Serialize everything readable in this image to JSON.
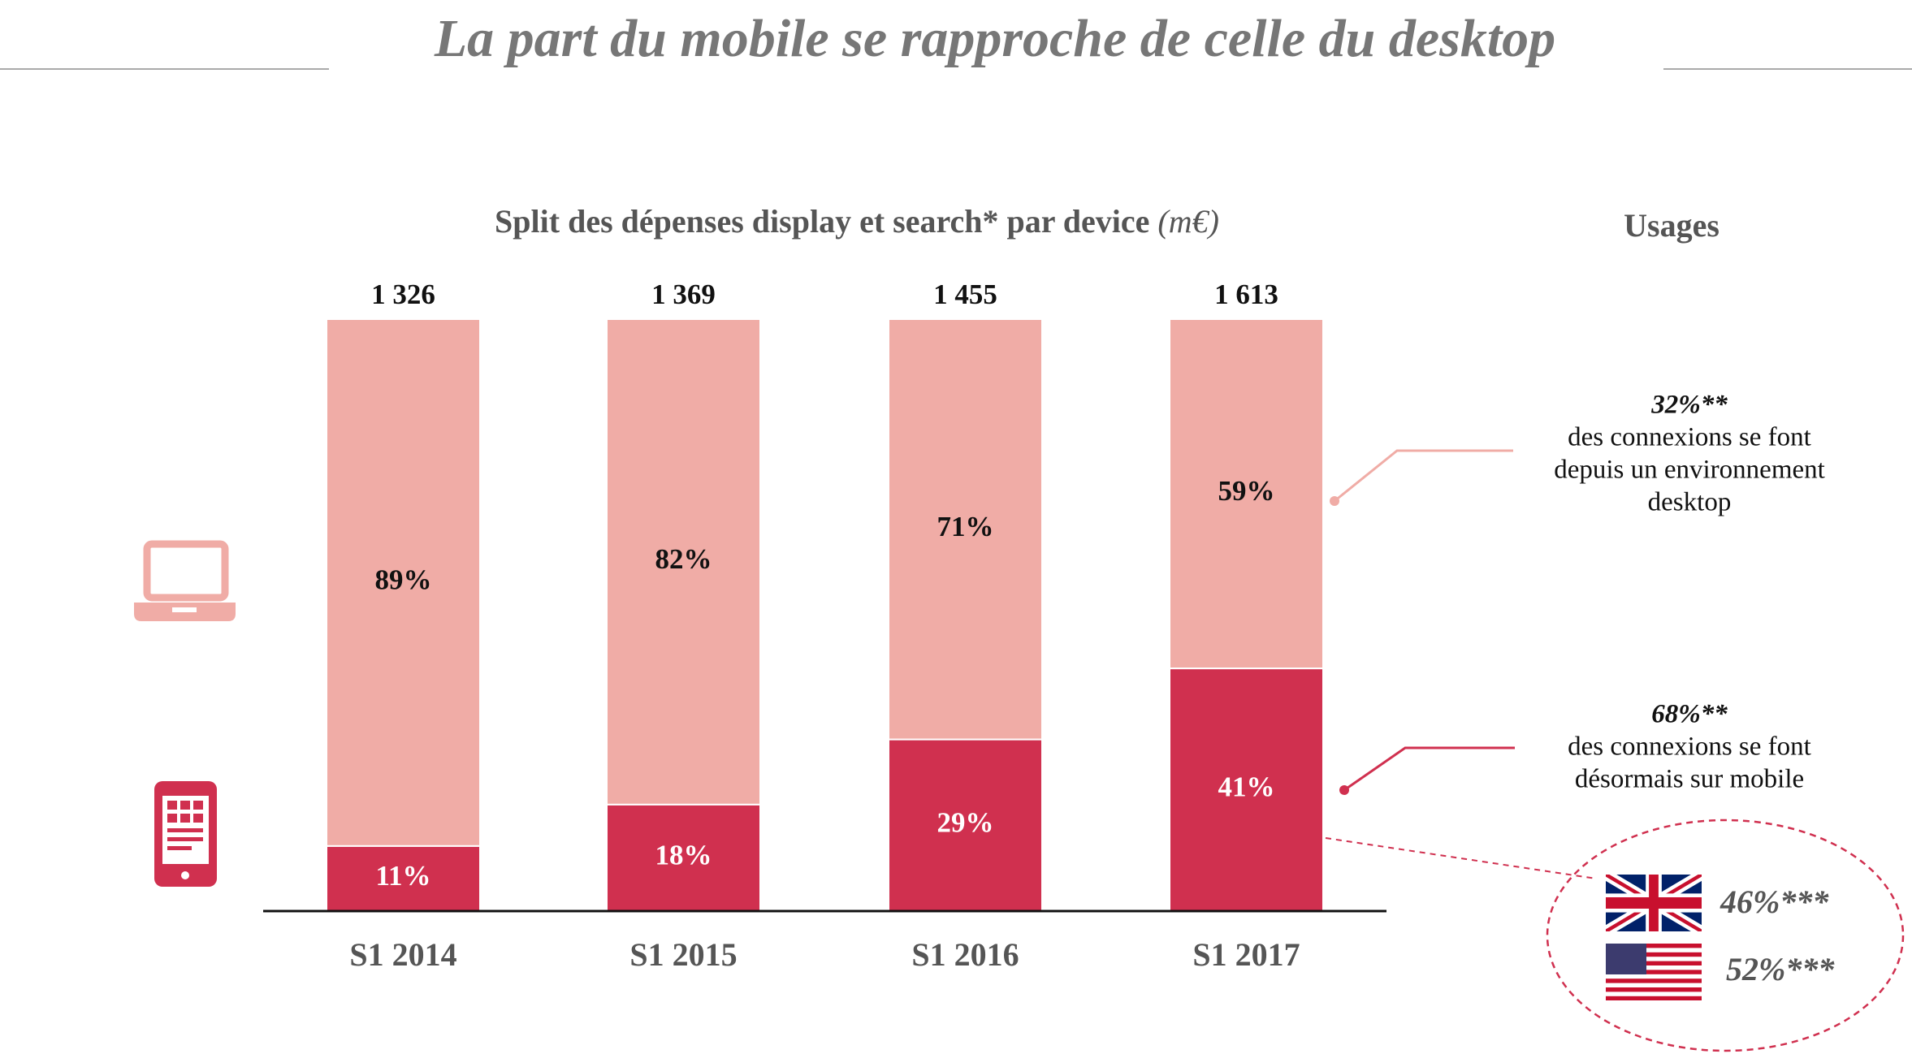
{
  "chart_data": {
    "type": "stacked_bar",
    "title": "La part du mobile se rapproche de celle du desktop",
    "subtitle": "Split des dépenses display et search* par device",
    "unit": "(m€)",
    "categories": [
      "S1 2014",
      "S1 2015",
      "S1 2016",
      "S1 2017"
    ],
    "ylim": [
      0,
      100
    ],
    "series": [
      {
        "name": "mobile",
        "color": "#d0304f",
        "values": [
          11,
          18,
          29,
          41
        ],
        "value_labels": [
          "11%",
          "18%",
          "29%",
          "41%"
        ]
      },
      {
        "name": "desktop",
        "color": "#f0aca6",
        "values": [
          89,
          82,
          71,
          59
        ],
        "value_labels": [
          "89%",
          "82%",
          "71%",
          "59%"
        ]
      }
    ],
    "totals": [
      {
        "value": 1326,
        "label": "1 326"
      },
      {
        "value": 1369,
        "label": "1 369"
      },
      {
        "value": 1455,
        "label": "1 455"
      },
      {
        "value": 1613,
        "label": "1 613"
      }
    ],
    "usages": {
      "title": "Usages",
      "desktop": {
        "share": "32%**",
        "lines": [
          "des connexions se font",
          "depuis un environnement",
          "desktop"
        ]
      },
      "mobile": {
        "share": "68%**",
        "lines": [
          "des connexions se font",
          "désormais sur mobile"
        ]
      },
      "uk": "46%***",
      "us": "52%***"
    }
  }
}
